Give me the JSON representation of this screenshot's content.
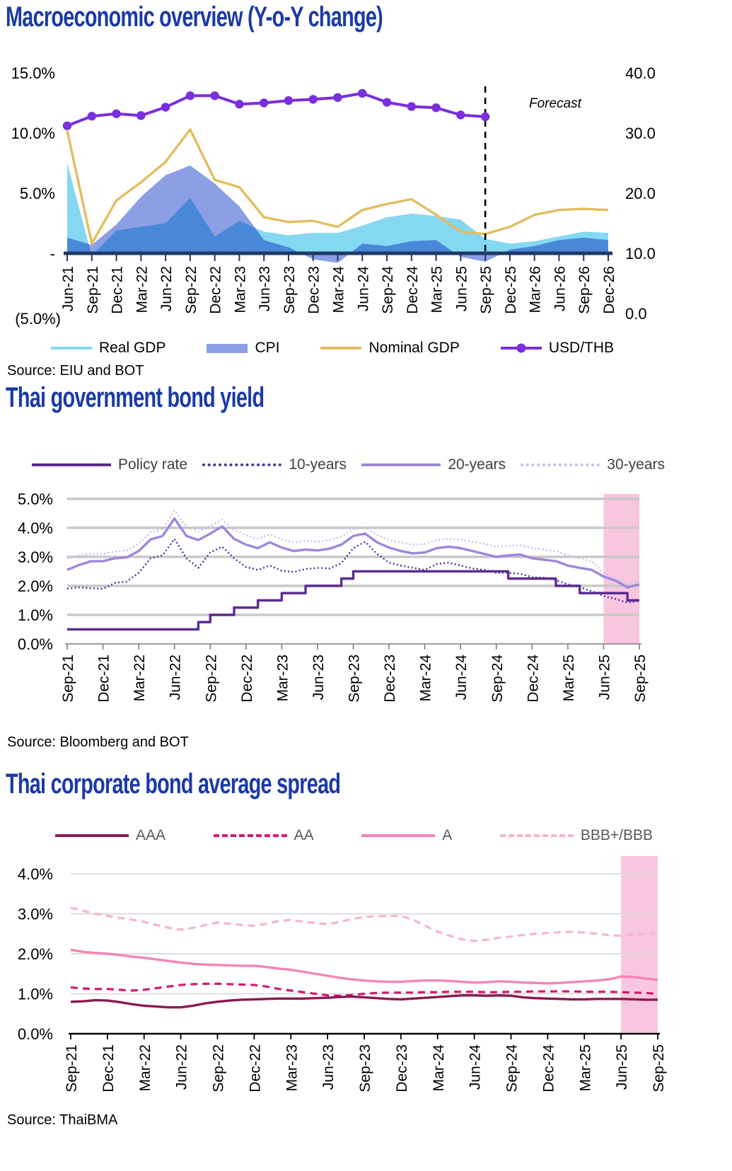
{
  "page": {
    "background": "#FFFFFF"
  },
  "chart_data": [
    {
      "type": "area",
      "title": "Macroeconomic overview (Y-o-Y change)",
      "source": "Source: EIU and BOT",
      "forecast_label": "Forecast",
      "forecast_start_category": "Sep-25",
      "legend_position": "bottom",
      "categories": [
        "Jun-21",
        "Sep-21",
        "Dec-21",
        "Mar-22",
        "Jun-22",
        "Sep-22",
        "Dec-22",
        "Mar-23",
        "Jun-23",
        "Sep-23",
        "Dec-23",
        "Mar-24",
        "Jun-24",
        "Sep-24",
        "Dec-24",
        "Mar-25",
        "Jun-25",
        "Sep-25",
        "Dec-25",
        "Mar-26",
        "Jun-26",
        "Sep-26",
        "Dec-26"
      ],
      "left_axis": {
        "tick_labels": [
          "15.0%",
          "10.0%",
          "5.0%",
          "-",
          "(5.0%)"
        ],
        "min": -5,
        "max": 15,
        "unit": "%"
      },
      "right_axis": {
        "tick_labels": [
          "40.0",
          "30.0",
          "20.0",
          "10.0",
          "0.0"
        ],
        "min": 0,
        "max": 40
      },
      "axis_color": "#1F3864",
      "series": [
        {
          "name": "Real GDP",
          "type": "area",
          "axis": "left",
          "swatch": "line",
          "color": "#85D8F1",
          "values": [
            7.5,
            -0.2,
            1.9,
            2.2,
            2.5,
            4.6,
            1.4,
            2.7,
            1.8,
            1.5,
            1.7,
            1.7,
            2.3,
            3.0,
            3.3,
            3.1,
            2.8,
            1.2,
            0.8,
            1.0,
            1.4,
            1.8,
            1.7
          ]
        },
        {
          "name": "CPI",
          "type": "area",
          "axis": "left",
          "swatch": "bar",
          "color": "#8C9FE5",
          "values": [
            1.3,
            0.7,
            2.4,
            4.7,
            6.5,
            7.3,
            5.8,
            3.9,
            1.1,
            0.5,
            -0.5,
            -0.8,
            0.8,
            0.6,
            1.0,
            1.1,
            -0.3,
            -0.7,
            0.3,
            0.6,
            1.1,
            1.3,
            1.1
          ]
        },
        {
          "name": "Nominal GDP",
          "type": "line",
          "axis": "left",
          "swatch": "line",
          "color": "#E3BC5F",
          "values": [
            10.2,
            0.8,
            4.4,
            5.9,
            7.6,
            10.3,
            6.1,
            5.5,
            3.0,
            2.6,
            2.7,
            2.2,
            3.6,
            4.1,
            4.5,
            3.2,
            1.8,
            1.6,
            2.2,
            3.2,
            3.6,
            3.7,
            3.6
          ]
        },
        {
          "name": "USD/THB",
          "type": "line-marker",
          "axis": "right",
          "swatch": "line-marker",
          "color": "#7A2EDD",
          "values": [
            31.2,
            32.8,
            33.2,
            32.9,
            34.3,
            36.2,
            36.2,
            34.8,
            35.0,
            35.4,
            35.6,
            35.9,
            36.6,
            35.1,
            34.4,
            34.2,
            33.0,
            32.7
          ]
        }
      ]
    },
    {
      "type": "line",
      "title": "Thai government bond yield",
      "source": "Source: Bloomberg and BOT",
      "legend_position": "top",
      "y_axis": {
        "tick_labels": [
          "5.0%",
          "4.0%",
          "3.0%",
          "2.0%",
          "1.0%",
          "0.0%"
        ],
        "min": 0,
        "max": 5,
        "unit": "%"
      },
      "categories": [
        "Sep-21",
        "Dec-21",
        "Mar-22",
        "Jun-22",
        "Sep-22",
        "Dec-22",
        "Mar-23",
        "Jun-23",
        "Sep-23",
        "Dec-23",
        "Mar-24",
        "Jun-24",
        "Sep-24",
        "Dec-24",
        "Mar-25",
        "Jun-25",
        "Sep-25"
      ],
      "frequency": "monthly",
      "span": [
        "Sep-21",
        "Sep-25"
      ],
      "highlight_band": {
        "from": "Jun-25",
        "to": "Sep-25",
        "color": "#F9C6DF"
      },
      "grid": "on",
      "series": [
        {
          "name": "Policy rate",
          "style": "step",
          "dash": "solid",
          "color": "#5A2D91",
          "values": [
            0.5,
            0.5,
            0.5,
            0.5,
            0.5,
            0.5,
            0.5,
            0.5,
            0.5,
            0.5,
            0.5,
            0.75,
            1.0,
            1.0,
            1.25,
            1.25,
            1.5,
            1.5,
            1.75,
            1.75,
            2.0,
            2.0,
            2.0,
            2.25,
            2.5,
            2.5,
            2.5,
            2.5,
            2.5,
            2.5,
            2.5,
            2.5,
            2.5,
            2.5,
            2.5,
            2.5,
            2.5,
            2.25,
            2.25,
            2.25,
            2.25,
            2.0,
            2.0,
            1.75,
            1.75,
            1.75,
            1.75,
            1.5,
            1.5
          ]
        },
        {
          "name": "10-years",
          "style": "line",
          "dash": "dotted",
          "color": "#4B2F9B",
          "values": [
            1.9,
            1.95,
            1.92,
            1.9,
            2.1,
            2.15,
            2.45,
            2.95,
            3.05,
            3.62,
            2.95,
            2.62,
            3.15,
            3.35,
            2.95,
            2.65,
            2.55,
            2.7,
            2.52,
            2.48,
            2.58,
            2.62,
            2.6,
            2.78,
            3.3,
            3.52,
            3.1,
            2.8,
            2.7,
            2.62,
            2.55,
            2.75,
            2.8,
            2.7,
            2.6,
            2.55,
            2.45,
            2.45,
            2.42,
            2.3,
            2.28,
            2.2,
            2.05,
            1.95,
            1.82,
            1.65,
            1.55,
            1.42,
            1.48
          ]
        },
        {
          "name": "20-years",
          "style": "line",
          "dash": "solid",
          "color": "#9E86DC",
          "values": [
            2.55,
            2.72,
            2.85,
            2.85,
            2.95,
            2.98,
            3.2,
            3.6,
            3.72,
            4.32,
            3.72,
            3.58,
            3.8,
            4.05,
            3.62,
            3.42,
            3.3,
            3.5,
            3.32,
            3.2,
            3.25,
            3.22,
            3.28,
            3.42,
            3.72,
            3.8,
            3.5,
            3.32,
            3.2,
            3.12,
            3.15,
            3.3,
            3.35,
            3.3,
            3.2,
            3.1,
            3.0,
            3.05,
            3.08,
            2.95,
            2.9,
            2.85,
            2.7,
            2.62,
            2.55,
            2.32,
            2.18,
            1.95,
            2.05
          ]
        },
        {
          "name": "30-years",
          "style": "line",
          "dash": "dotted",
          "color": "#C6BCE8",
          "values": [
            2.95,
            3.05,
            3.1,
            3.1,
            3.18,
            3.22,
            3.45,
            3.85,
            3.95,
            4.6,
            4.05,
            3.88,
            4.05,
            4.28,
            3.92,
            3.75,
            3.62,
            3.78,
            3.6,
            3.5,
            3.55,
            3.52,
            3.58,
            3.7,
            3.95,
            4.02,
            3.75,
            3.58,
            3.5,
            3.42,
            3.45,
            3.58,
            3.62,
            3.6,
            3.52,
            3.45,
            3.35,
            3.38,
            3.4,
            3.3,
            3.25,
            3.2,
            3.05,
            2.95,
            2.85,
            2.45,
            2.25,
            2.05,
            2.15
          ]
        }
      ]
    },
    {
      "type": "line",
      "title": "Thai corporate bond average spread",
      "source": "Source: ThaiBMA",
      "legend_position": "top",
      "y_axis": {
        "tick_labels": [
          "4.0%",
          "3.0%",
          "2.0%",
          "1.0%",
          "0.0%"
        ],
        "min": 0,
        "max": 4,
        "unit": "%"
      },
      "categories": [
        "Sep-21",
        "Dec-21",
        "Mar-22",
        "Jun-22",
        "Sep-22",
        "Dec-22",
        "Mar-23",
        "Jun-23",
        "Sep-23",
        "Dec-23",
        "Mar-24",
        "Jun-24",
        "Sep-24",
        "Dec-24",
        "Mar-25",
        "Jun-25",
        "Sep-25"
      ],
      "frequency": "monthly",
      "span": [
        "Sep-21",
        "Sep-25"
      ],
      "highlight_band": {
        "from": "Jun-25",
        "to": "Sep-25",
        "color": "#F9C6DF"
      },
      "grid": "on",
      "series": [
        {
          "name": "AAA",
          "style": "line",
          "dash": "solid",
          "color": "#8A1A52",
          "values": [
            0.8,
            0.81,
            0.84,
            0.83,
            0.79,
            0.74,
            0.7,
            0.68,
            0.66,
            0.66,
            0.7,
            0.76,
            0.8,
            0.83,
            0.85,
            0.86,
            0.87,
            0.88,
            0.88,
            0.88,
            0.89,
            0.9,
            0.92,
            0.93,
            0.91,
            0.89,
            0.87,
            0.86,
            0.88,
            0.9,
            0.92,
            0.94,
            0.96,
            0.96,
            0.95,
            0.96,
            0.95,
            0.91,
            0.89,
            0.88,
            0.87,
            0.86,
            0.86,
            0.87,
            0.87,
            0.87,
            0.86,
            0.85,
            0.85
          ]
        },
        {
          "name": "AA",
          "style": "line",
          "dash": "dashed",
          "color": "#D5186E",
          "values": [
            1.16,
            1.13,
            1.12,
            1.12,
            1.1,
            1.08,
            1.1,
            1.14,
            1.18,
            1.22,
            1.24,
            1.25,
            1.25,
            1.24,
            1.23,
            1.22,
            1.18,
            1.12,
            1.08,
            1.04,
            1.0,
            0.96,
            0.95,
            0.97,
            1.0,
            1.02,
            1.03,
            1.03,
            1.03,
            1.04,
            1.04,
            1.05,
            1.05,
            1.05,
            1.04,
            1.04,
            1.05,
            1.05,
            1.06,
            1.06,
            1.06,
            1.06,
            1.05,
            1.05,
            1.05,
            1.04,
            1.03,
            1.02,
            1.0
          ]
        },
        {
          "name": "A",
          "style": "line",
          "dash": "solid",
          "color": "#F585B5",
          "values": [
            2.1,
            2.05,
            2.02,
            2.0,
            1.97,
            1.93,
            1.9,
            1.86,
            1.82,
            1.78,
            1.75,
            1.73,
            1.72,
            1.71,
            1.7,
            1.7,
            1.67,
            1.63,
            1.6,
            1.55,
            1.5,
            1.45,
            1.4,
            1.36,
            1.33,
            1.31,
            1.3,
            1.3,
            1.32,
            1.33,
            1.33,
            1.32,
            1.3,
            1.28,
            1.29,
            1.31,
            1.3,
            1.28,
            1.27,
            1.26,
            1.27,
            1.29,
            1.31,
            1.33,
            1.36,
            1.43,
            1.42,
            1.38,
            1.35
          ]
        },
        {
          "name": "BBB+/BBB",
          "style": "line",
          "dash": "dashed",
          "color": "#F6B3D2",
          "values": [
            3.15,
            3.08,
            3.0,
            2.95,
            2.9,
            2.85,
            2.8,
            2.72,
            2.65,
            2.6,
            2.65,
            2.72,
            2.78,
            2.75,
            2.72,
            2.7,
            2.75,
            2.82,
            2.85,
            2.8,
            2.77,
            2.74,
            2.8,
            2.87,
            2.92,
            2.94,
            2.95,
            2.95,
            2.85,
            2.7,
            2.55,
            2.45,
            2.36,
            2.32,
            2.35,
            2.4,
            2.43,
            2.47,
            2.5,
            2.52,
            2.54,
            2.55,
            2.53,
            2.5,
            2.47,
            2.45,
            2.48,
            2.5,
            2.52
          ]
        }
      ]
    }
  ]
}
